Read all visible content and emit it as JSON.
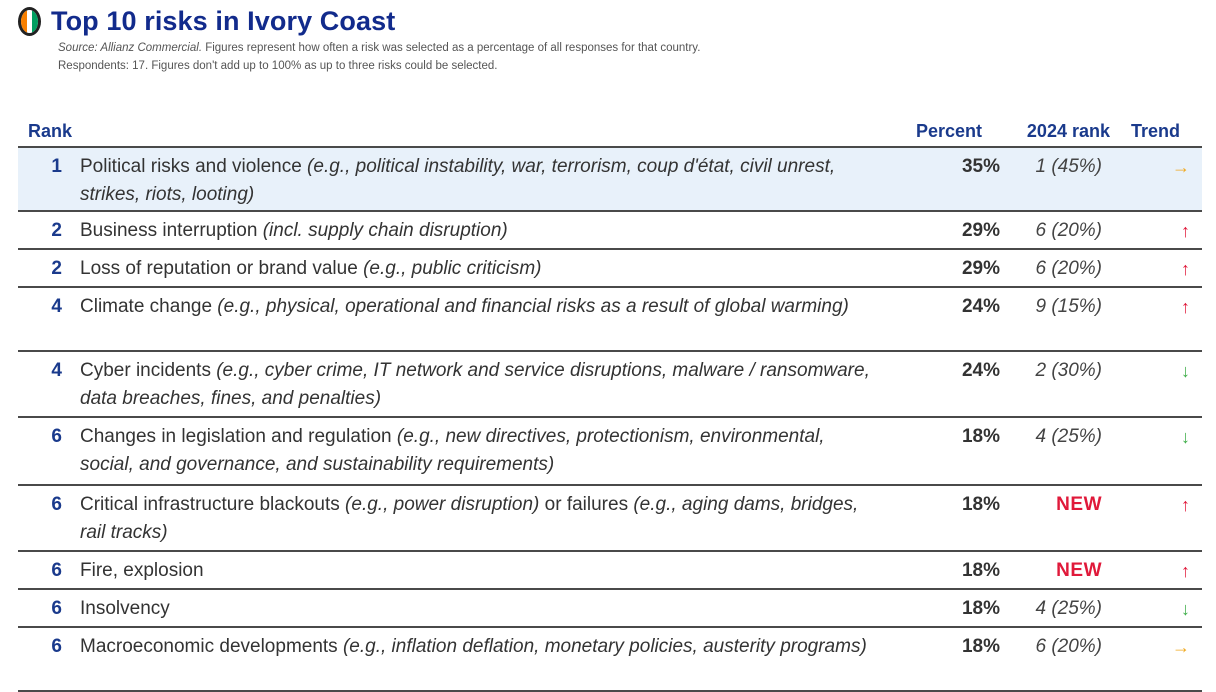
{
  "header": {
    "title": "Top 10 risks in Ivory Coast",
    "source_prefix": "Source: Allianz Commercial.",
    "source_text": " Figures represent how often a risk was selected as a percentage of all responses for that country.",
    "respondents": "Respondents: 17. Figures don't add up to 100% as up to three risks could be selected.",
    "flag_colors": [
      "#f77f00",
      "#ffffff",
      "#009e60"
    ]
  },
  "columns": {
    "rank": "Rank",
    "percent": "Percent",
    "prev": "2024 rank",
    "trend": "Trend"
  },
  "colors": {
    "up": "#e0193a",
    "down": "#3fae49",
    "flat": "#f0a81e",
    "highlight": "#e8f1fa"
  },
  "rows": [
    {
      "rank": "1",
      "main": "Political risks and violence ",
      "example": "(e.g., political instability, war, terrorism, coup d'état, civil unrest, strikes, riots, looting)",
      "percent": "35%",
      "prev": "1 (45%)",
      "trend": "right",
      "trend_icon": "arrow-right-icon"
    },
    {
      "rank": "2",
      "main": "Business interruption ",
      "example": "(incl. supply chain disruption)",
      "percent": "29%",
      "prev": "6 (20%)",
      "trend": "up",
      "trend_icon": "arrow-up-icon"
    },
    {
      "rank": "2",
      "main": "Loss of reputation or brand value ",
      "example": "(e.g., public criticism)",
      "percent": "29%",
      "prev": "6 (20%)",
      "trend": "up",
      "trend_icon": "arrow-up-icon"
    },
    {
      "rank": "4",
      "main": "Climate change ",
      "example": "(e.g., physical, operational and financial risks as a result of global warming)",
      "percent": "24%",
      "prev": "9 (15%)",
      "trend": "up",
      "trend_icon": "arrow-up-icon"
    },
    {
      "rank": "4",
      "main": "Cyber incidents ",
      "example": "(e.g., cyber crime, IT network and service disruptions, malware / ransomware, data breaches, fines, and penalties)",
      "percent": "24%",
      "prev": "2 (30%)",
      "trend": "down",
      "trend_icon": "arrow-down-icon"
    },
    {
      "rank": "6",
      "main": "Changes in legislation and regulation ",
      "example": "(e.g., new directives, protectionism, environmental, social, and governance, and sustainability requirements)",
      "percent": "18%",
      "prev": "4 (25%)",
      "trend": "down",
      "trend_icon": "arrow-down-icon"
    },
    {
      "rank": "6",
      "main": "Critical infrastructure blackouts ",
      "example": "(e.g., power disruption)",
      "main2": " or failures ",
      "example2": "(e.g., aging dams, bridges, rail tracks)",
      "percent": "18%",
      "prev": "NEW",
      "trend": "up",
      "trend_icon": "arrow-up-icon"
    },
    {
      "rank": "6",
      "main": "Fire, explosion",
      "example": "",
      "percent": "18%",
      "prev": "NEW",
      "trend": "up",
      "trend_icon": "arrow-up-icon"
    },
    {
      "rank": "6",
      "main": "Insolvency",
      "example": "",
      "percent": "18%",
      "prev": "4 (25%)",
      "trend": "down",
      "trend_icon": "arrow-down-icon"
    },
    {
      "rank": "6",
      "main": "Macroeconomic developments ",
      "example": "(e.g., inflation deflation, monetary policies, austerity programs)",
      "percent": "18%",
      "prev": "6 (20%)",
      "trend": "right",
      "trend_icon": "arrow-right-icon"
    }
  ]
}
